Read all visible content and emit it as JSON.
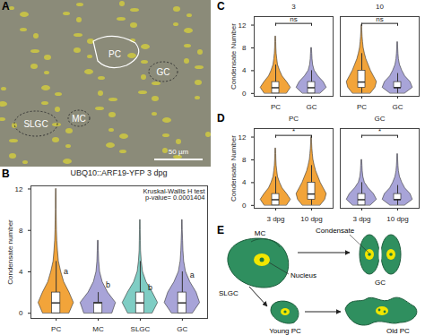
{
  "chart_data": [
    {
      "panel_label": "B",
      "type": "violin",
      "title": "UBQ10::ARF19-YFP 3 dpg",
      "y_label": "Condensate number",
      "ylim": [
        -0.5,
        12.3
      ],
      "yticks": [
        0,
        4,
        8,
        12
      ],
      "annotations": [
        "Kruskal-Wallis H test",
        "p-value= 0.0001404"
      ],
      "facets": [
        {
          "categories": [
            "PC",
            "MC",
            "SLGC",
            "GC"
          ],
          "colors": [
            "#F2A43A",
            "#A8A4D8",
            "#7FCDC4",
            "#A8A4D8"
          ],
          "violins": [
            {
              "density": [
                0.75,
                1,
                0.75,
                0.45,
                0.28,
                0.15,
                0.1,
                0.06,
                0.04,
                0.03,
                0.02,
                0.02,
                0.015
              ],
              "whisker_low": 0,
              "q1": 0,
              "median": 1,
              "q3": 2,
              "whisker_high": 5,
              "letter": "a",
              "letter_y": 4
            },
            {
              "density": [
                0.8,
                1,
                0.55,
                0.25,
                0.1,
                0.05,
                0.03,
                0.02
              ],
              "whisker_low": 0,
              "q1": 0,
              "median": 1,
              "q3": 1,
              "whisker_high": 2,
              "letter": "b",
              "letter_y": 2.7
            },
            {
              "density": [
                0.7,
                1,
                0.7,
                0.35,
                0.15,
                0.08,
                0.04,
                0.03,
                0.02,
                0.015
              ],
              "whisker_low": 0,
              "q1": 0,
              "median": 1,
              "q3": 2,
              "whisker_high": 5,
              "letter": "b",
              "letter_y": 2.5
            },
            {
              "density": [
                0.6,
                1,
                0.8,
                0.45,
                0.2,
                0.1,
                0.06,
                0.04,
                0.02,
                0.015
              ],
              "whisker_low": 0,
              "q1": 0,
              "median": 1,
              "q3": 2,
              "whisker_high": 4,
              "letter": "a",
              "letter_y": 3.7
            }
          ]
        }
      ]
    },
    {
      "panel_label": "C",
      "type": "violin",
      "y_label": "Condensate Number",
      "ylim": [
        -0.5,
        13.5
      ],
      "yticks": [
        0,
        4,
        8,
        12
      ],
      "facets": [
        {
          "name": "3",
          "categories": [
            "PC",
            "GC"
          ],
          "colors": [
            "#F2A43A",
            "#A8A4D8"
          ],
          "comparison": {
            "label": "ns",
            "y": 12.3
          },
          "violins": [
            {
              "density": [
                0.75,
                1,
                0.75,
                0.45,
                0.28,
                0.15,
                0.1,
                0.06,
                0.04,
                0.03,
                0.02
              ],
              "whisker_low": 0,
              "q1": 0,
              "median": 1,
              "q3": 2,
              "whisker_high": 5
            },
            {
              "density": [
                0.6,
                1,
                0.8,
                0.45,
                0.2,
                0.1,
                0.06,
                0.04,
                0.02
              ],
              "whisker_low": 0,
              "q1": 0,
              "median": 1,
              "q3": 2,
              "whisker_high": 4
            }
          ]
        },
        {
          "name": "10",
          "categories": [
            "PC",
            "GC"
          ],
          "colors": [
            "#F2A43A",
            "#A8A4D8"
          ],
          "comparison": {
            "label": "ns",
            "y": 12.3
          },
          "violins": [
            {
              "density": [
                0.6,
                0.9,
                1,
                0.8,
                0.6,
                0.45,
                0.3,
                0.2,
                0.12,
                0.08,
                0.05,
                0.03,
                0.02
              ],
              "whisker_low": 0,
              "q1": 1,
              "median": 2,
              "q3": 4,
              "whisker_high": 7
            },
            {
              "density": [
                0.5,
                1,
                0.85,
                0.5,
                0.3,
                0.15,
                0.08,
                0.05,
                0.03,
                0.02
              ],
              "whisker_low": 0,
              "q1": 1,
              "median": 1,
              "q3": 2,
              "whisker_high": 3.5
            }
          ]
        }
      ]
    },
    {
      "panel_label": "D",
      "type": "violin",
      "y_label": "Condensate Number",
      "ylim": [
        -0.5,
        13.5
      ],
      "yticks": [
        0,
        4,
        8,
        12
      ],
      "facets": [
        {
          "name": "PC",
          "categories": [
            "3 dpg",
            "10 dpg"
          ],
          "colors": [
            "#F2A43A",
            "#F2A43A"
          ],
          "comparison": {
            "label": "*",
            "y": 12.3
          },
          "violins": [
            {
              "density": [
                0.75,
                1,
                0.75,
                0.45,
                0.28,
                0.15,
                0.1,
                0.06,
                0.04,
                0.03,
                0.02
              ],
              "whisker_low": 0,
              "q1": 0,
              "median": 1,
              "q3": 2,
              "whisker_high": 5
            },
            {
              "density": [
                0.6,
                0.9,
                1,
                0.8,
                0.6,
                0.45,
                0.3,
                0.2,
                0.12,
                0.08,
                0.05,
                0.03,
                0.02
              ],
              "whisker_low": 0,
              "q1": 1,
              "median": 2,
              "q3": 4,
              "whisker_high": 7
            }
          ]
        },
        {
          "name": "GC",
          "categories": [
            "3 dpg",
            "10 dpg"
          ],
          "colors": [
            "#A8A4D8",
            "#A8A4D8"
          ],
          "comparison": {
            "label": "*",
            "y": 12.3
          },
          "violins": [
            {
              "density": [
                0.6,
                1,
                0.8,
                0.45,
                0.2,
                0.1,
                0.06,
                0.04,
                0.02
              ],
              "whisker_low": 0,
              "q1": 0,
              "median": 1,
              "q3": 2,
              "whisker_high": 4
            },
            {
              "density": [
                0.5,
                1,
                0.85,
                0.5,
                0.3,
                0.15,
                0.08,
                0.05,
                0.03,
                0.02
              ],
              "whisker_low": 0,
              "q1": 1,
              "median": 1,
              "q3": 2,
              "whisker_high": 3.5
            }
          ]
        }
      ]
    }
  ],
  "image": {
    "panel_label": "A",
    "cell_labels": [
      "PC",
      "GC",
      "SLGC",
      "MC"
    ],
    "scale_bar": "50 µm"
  },
  "diagram": {
    "panel_label": "E",
    "labels": {
      "mc": "MC",
      "slgc": "SLGC",
      "nucleus": "Nucleus",
      "condensate": "Condensate",
      "gc": "GC",
      "young_pc": "Young PC",
      "old_pc": "Old PC"
    }
  }
}
